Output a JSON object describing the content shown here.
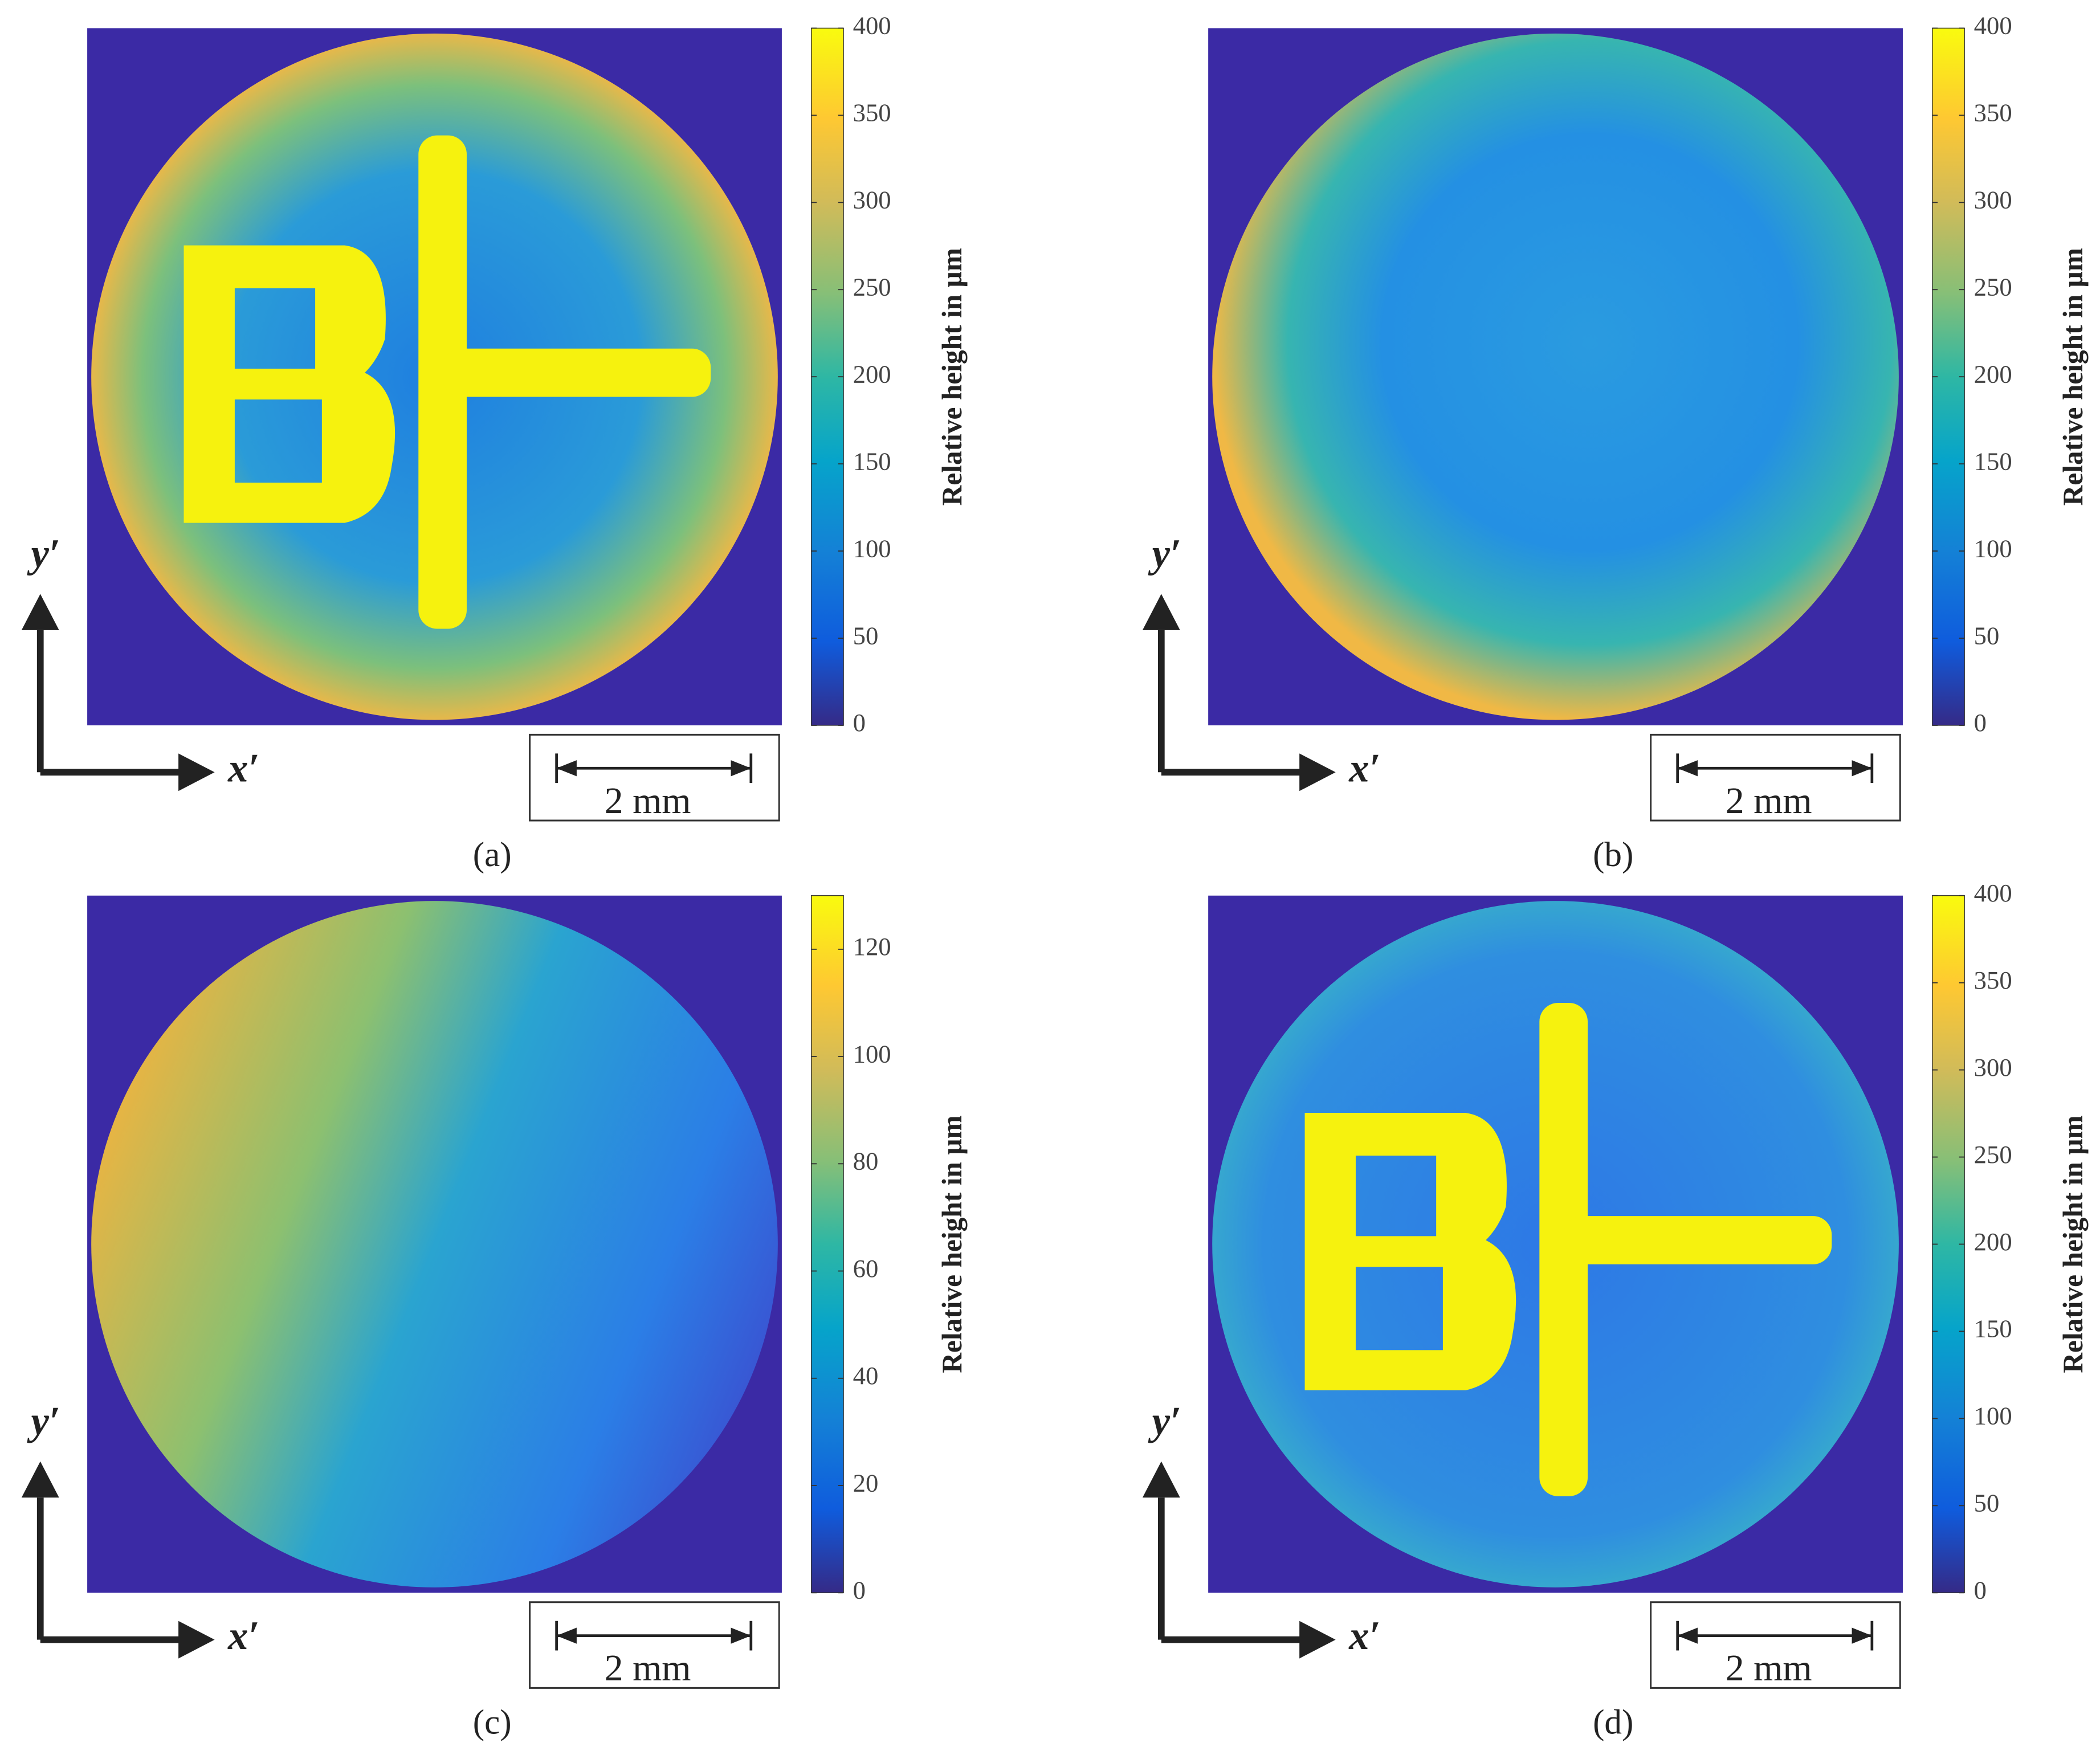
{
  "chart_data": [
    {
      "type": "heatmap",
      "caption": "(a)",
      "colorbar_label": "Relative height in µm",
      "clim": [
        0,
        400
      ],
      "cticks": [
        0,
        50,
        100,
        150,
        200,
        250,
        300,
        350,
        400
      ],
      "scale_bar": "2 mm",
      "xlabel": "x′",
      "ylabel": "y′"
    },
    {
      "type": "heatmap",
      "caption": "(b)",
      "colorbar_label": "Relative height in µm",
      "clim": [
        0,
        400
      ],
      "cticks": [
        0,
        50,
        100,
        150,
        200,
        250,
        300,
        350,
        400
      ],
      "scale_bar": "2 mm",
      "xlabel": "x′",
      "ylabel": "y′"
    },
    {
      "type": "heatmap",
      "caption": "(c)",
      "colorbar_label": "Relative height in µm",
      "clim": [
        0,
        130
      ],
      "cticks": [
        0,
        20,
        40,
        60,
        80,
        100,
        120
      ],
      "scale_bar": "2 mm",
      "xlabel": "x′",
      "ylabel": "y′"
    },
    {
      "type": "heatmap",
      "caption": "(d)",
      "colorbar_label": "Relative height in µm",
      "clim": [
        0,
        400
      ],
      "cticks": [
        0,
        50,
        100,
        150,
        200,
        250,
        300,
        350,
        400
      ],
      "scale_bar": "2 mm",
      "xlabel": "x′",
      "ylabel": "y′"
    }
  ]
}
